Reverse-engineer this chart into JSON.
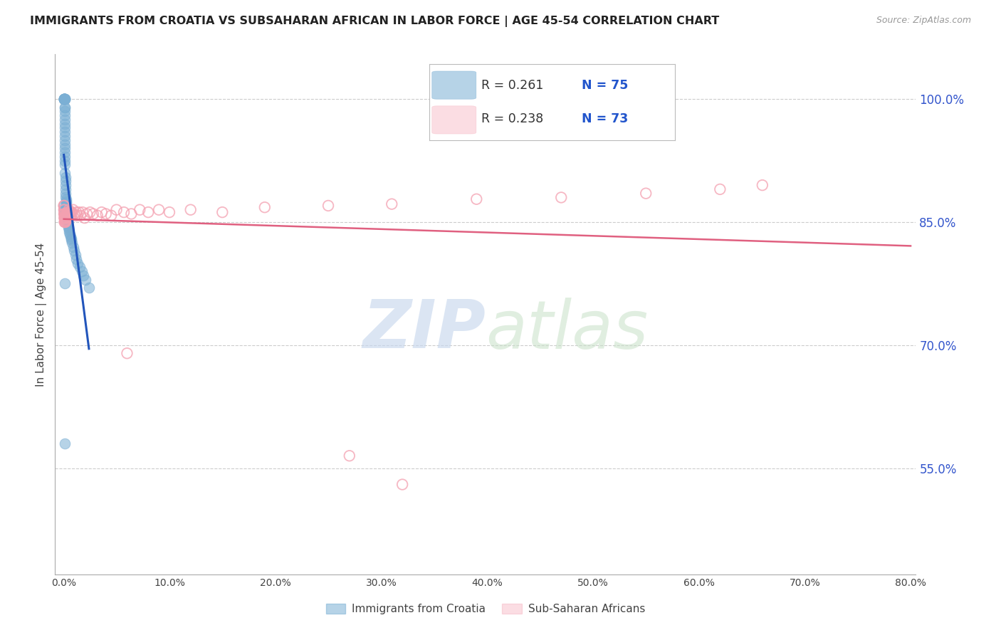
{
  "title": "IMMIGRANTS FROM CROATIA VS SUBSAHARAN AFRICAN IN LABOR FORCE | AGE 45-54 CORRELATION CHART",
  "source": "Source: ZipAtlas.com",
  "ylabel": "In Labor Force | Age 45-54",
  "right_yticks": [
    1.0,
    0.85,
    0.7,
    0.55
  ],
  "right_yticklabels": [
    "100.0%",
    "85.0%",
    "70.0%",
    "55.0%"
  ],
  "legend_blue_R": "0.261",
  "legend_blue_N": "75",
  "legend_pink_R": "0.238",
  "legend_pink_N": "73",
  "legend_blue_label": "Immigrants from Croatia",
  "legend_pink_label": "Sub-Saharan Africans",
  "blue_color": "#7bafd4",
  "pink_color": "#f4a0b0",
  "trendline_blue": "#2255bb",
  "trendline_pink": "#e06080",
  "background_color": "#ffffff",
  "grid_color": "#cccccc",
  "watermark_zip": "ZIP",
  "watermark_atlas": "atlas",
  "xlim_min": 0.0,
  "xlim_max": 0.8,
  "ylim_min": 0.42,
  "ylim_max": 1.055,
  "blue_x": [
    0.0003,
    0.0004,
    0.0005,
    0.0005,
    0.0006,
    0.0006,
    0.0007,
    0.0007,
    0.0008,
    0.0008,
    0.0009,
    0.0009,
    0.001,
    0.001,
    0.001,
    0.001,
    0.001,
    0.001,
    0.001,
    0.001,
    0.001,
    0.001,
    0.001,
    0.001,
    0.0011,
    0.0011,
    0.0012,
    0.0012,
    0.0013,
    0.0013,
    0.0014,
    0.0015,
    0.0016,
    0.0017,
    0.0018,
    0.0019,
    0.002,
    0.0021,
    0.0022,
    0.0023,
    0.0024,
    0.0025,
    0.0026,
    0.0027,
    0.0028,
    0.003,
    0.0032,
    0.0034,
    0.0036,
    0.0038,
    0.004,
    0.0043,
    0.0046,
    0.005,
    0.0055,
    0.006,
    0.0065,
    0.007,
    0.0075,
    0.008,
    0.009,
    0.01,
    0.011,
    0.012,
    0.0135,
    0.015,
    0.017,
    0.019,
    0.021,
    0.024,
    0.0005,
    0.0006,
    0.0007,
    0.0012,
    0.0015
  ],
  "blue_y": [
    1.0,
    1.0,
    1.0,
    1.0,
    1.0,
    1.0,
    1.0,
    1.0,
    1.0,
    1.0,
    1.0,
    1.0,
    1.0,
    1.0,
    1.0,
    0.99,
    0.99,
    0.985,
    0.98,
    0.975,
    0.97,
    0.965,
    0.96,
    0.955,
    0.95,
    0.945,
    0.94,
    0.935,
    0.93,
    0.925,
    0.92,
    0.91,
    0.905,
    0.9,
    0.895,
    0.89,
    0.885,
    0.88,
    0.878,
    0.875,
    0.873,
    0.87,
    0.868,
    0.865,
    0.863,
    0.86,
    0.858,
    0.855,
    0.853,
    0.85,
    0.848,
    0.845,
    0.843,
    0.84,
    0.838,
    0.835,
    0.833,
    0.83,
    0.828,
    0.825,
    0.82,
    0.815,
    0.81,
    0.805,
    0.8,
    0.795,
    0.79,
    0.785,
    0.78,
    0.77,
    0.87,
    0.865,
    0.86,
    0.775,
    0.58
  ],
  "pink_x": [
    0.0003,
    0.0004,
    0.0005,
    0.0005,
    0.0006,
    0.0007,
    0.0008,
    0.0009,
    0.001,
    0.001,
    0.0011,
    0.0012,
    0.0013,
    0.0014,
    0.0015,
    0.0016,
    0.0017,
    0.0018,
    0.0019,
    0.002,
    0.0022,
    0.0024,
    0.0026,
    0.0028,
    0.003,
    0.0032,
    0.0035,
    0.0038,
    0.0041,
    0.0045,
    0.005,
    0.0055,
    0.006,
    0.0065,
    0.007,
    0.0075,
    0.008,
    0.009,
    0.01,
    0.011,
    0.012,
    0.013,
    0.0145,
    0.016,
    0.018,
    0.02,
    0.022,
    0.025,
    0.028,
    0.032,
    0.036,
    0.04,
    0.045,
    0.05,
    0.057,
    0.064,
    0.072,
    0.08,
    0.09,
    0.1,
    0.12,
    0.15,
    0.19,
    0.25,
    0.31,
    0.39,
    0.47,
    0.55,
    0.62,
    0.66,
    0.06,
    0.27,
    0.32
  ],
  "pink_y": [
    0.87,
    0.87,
    0.865,
    0.865,
    0.86,
    0.86,
    0.855,
    0.855,
    0.85,
    0.85,
    0.86,
    0.858,
    0.856,
    0.854,
    0.852,
    0.855,
    0.853,
    0.851,
    0.85,
    0.858,
    0.855,
    0.852,
    0.86,
    0.857,
    0.855,
    0.858,
    0.862,
    0.856,
    0.86,
    0.862,
    0.865,
    0.862,
    0.858,
    0.862,
    0.858,
    0.862,
    0.86,
    0.865,
    0.86,
    0.858,
    0.862,
    0.858,
    0.862,
    0.858,
    0.862,
    0.855,
    0.86,
    0.862,
    0.86,
    0.858,
    0.862,
    0.86,
    0.858,
    0.865,
    0.862,
    0.86,
    0.865,
    0.862,
    0.865,
    0.862,
    0.865,
    0.862,
    0.868,
    0.87,
    0.872,
    0.878,
    0.88,
    0.885,
    0.89,
    0.895,
    0.69,
    0.565,
    0.53
  ]
}
